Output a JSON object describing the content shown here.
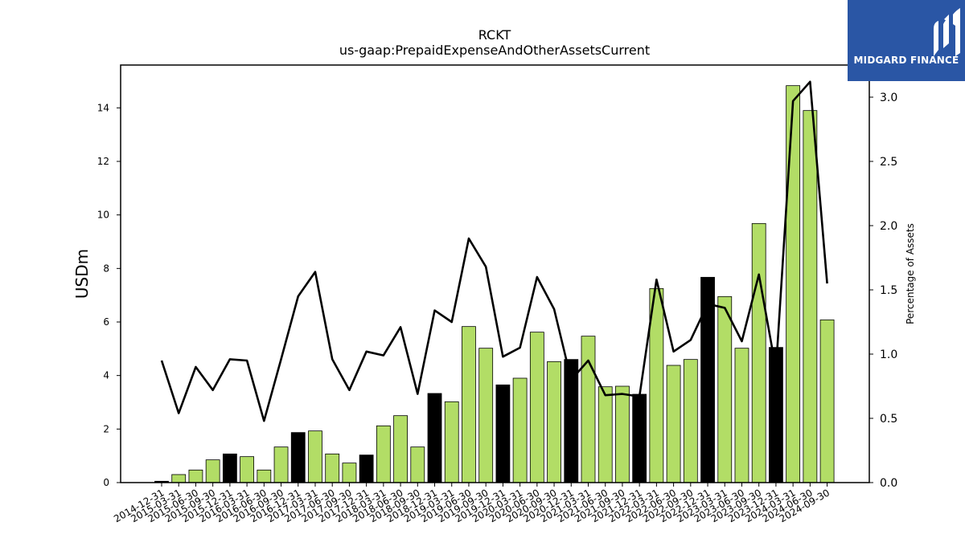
{
  "chart_data": {
    "type": "bar",
    "title": "RCKT",
    "subtitle": "us-gaap:PrepaidExpenseAndOtherAssetsCurrent",
    "ylabel": "USDm",
    "y2label": "Percentage of Assets",
    "ylim": [
      0,
      15.6
    ],
    "y2lim": [
      0,
      3.25
    ],
    "yticks": [
      "0",
      "2",
      "4",
      "6",
      "8",
      "10",
      "12",
      "14"
    ],
    "y2ticks": [
      "0.0",
      "0.5",
      "1.0",
      "1.5",
      "2.0",
      "2.5",
      "3.0"
    ],
    "categories": [
      "2014-12-31",
      "2015-03-31",
      "2015-06-30",
      "2015-09-30",
      "2015-12-31",
      "2016-03-31",
      "2016-06-30",
      "2016-09-30",
      "2016-12-31",
      "2017-03-31",
      "2017-06-30",
      "2017-09-30",
      "2017-12-31",
      "2018-03-31",
      "2018-06-30",
      "2018-09-30",
      "2018-12-31",
      "2019-03-31",
      "2019-06-30",
      "2019-09-30",
      "2019-12-31",
      "2020-03-31",
      "2020-06-30",
      "2020-09-30",
      "2020-12-31",
      "2021-03-31",
      "2021-06-30",
      "2021-09-30",
      "2021-12-31",
      "2022-03-31",
      "2022-06-30",
      "2022-09-30",
      "2022-12-31",
      "2023-03-31",
      "2023-06-30",
      "2023-09-30",
      "2023-12-31",
      "2024-03-31",
      "2024-06-30",
      "2024-09-30"
    ],
    "series": [
      {
        "kind": "bar",
        "values": [
          0.05,
          0.3,
          0.47,
          0.85,
          1.07,
          0.97,
          0.47,
          1.33,
          1.87,
          1.93,
          1.07,
          0.73,
          1.03,
          2.12,
          2.5,
          1.33,
          3.33,
          3.02,
          5.83,
          5.02,
          3.65,
          3.9,
          5.62,
          4.52,
          4.6,
          5.47,
          3.58,
          3.6,
          3.3,
          7.25,
          4.38,
          4.6,
          7.67,
          6.95,
          5.02,
          9.68,
          5.05,
          14.83,
          13.9,
          6.08
        ],
        "year_end_flags": [
          true,
          false,
          false,
          false,
          true,
          false,
          false,
          false,
          true,
          false,
          false,
          false,
          true,
          false,
          false,
          false,
          true,
          false,
          false,
          false,
          true,
          false,
          false,
          false,
          true,
          false,
          false,
          false,
          true,
          false,
          false,
          false,
          true,
          false,
          false,
          false,
          true,
          false,
          false,
          false
        ],
        "color": "#b2dd66",
        "year_end_color": "#000000"
      },
      {
        "kind": "line",
        "axis": "right",
        "values": [
          0.95,
          0.54,
          0.9,
          0.72,
          0.96,
          0.95,
          0.48,
          0.96,
          1.45,
          1.64,
          0.96,
          0.72,
          1.02,
          0.99,
          1.21,
          0.69,
          1.34,
          1.25,
          1.9,
          1.68,
          0.98,
          1.05,
          1.6,
          1.35,
          0.8,
          0.95,
          0.68,
          0.69,
          0.67,
          1.58,
          1.02,
          1.11,
          1.39,
          1.36,
          1.1,
          1.62,
          0.88,
          2.97,
          3.12,
          1.55
        ],
        "color": "#000000"
      }
    ],
    "grid": false
  },
  "logo": {
    "text": "MIDGARD FINANCE"
  }
}
